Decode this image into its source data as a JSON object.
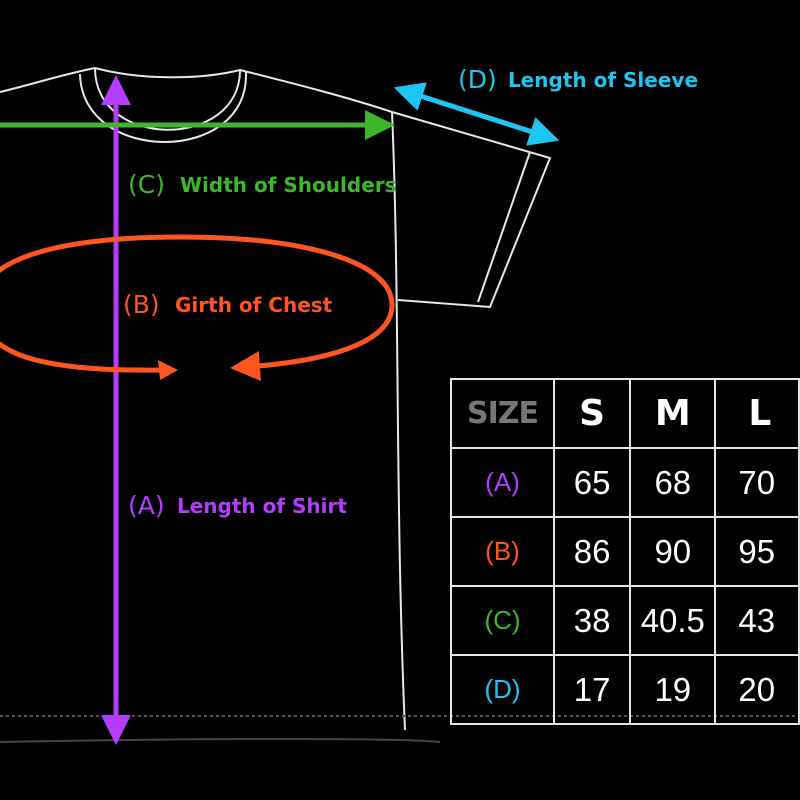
{
  "labels": {
    "sleeve": {
      "code": "(D)",
      "text": "Length of Sleeve",
      "color": "#1ec4f2"
    },
    "shoulders": {
      "code": "(C)",
      "text": "Width of Shoulders",
      "color": "#3db82a"
    },
    "chest": {
      "code": "(B)",
      "text": "Girth of Chest",
      "color": "#ff5520"
    },
    "length": {
      "code": "(A)",
      "text": "Length of Shirt",
      "color": "#b33cff"
    }
  },
  "table": {
    "header": [
      "SIZE",
      "S",
      "M",
      "L"
    ],
    "rows": [
      {
        "label": "(A)",
        "color": "#b33cff",
        "values": [
          "65",
          "68",
          "70"
        ]
      },
      {
        "label": "(B)",
        "color": "#ff5520",
        "values": [
          "86",
          "90",
          "95"
        ]
      },
      {
        "label": "(C)",
        "color": "#3db82a",
        "values": [
          "38",
          "40.5",
          "43"
        ]
      },
      {
        "label": "(D)",
        "color": "#1ec4f2",
        "values": [
          "17",
          "19",
          "20"
        ]
      }
    ]
  }
}
